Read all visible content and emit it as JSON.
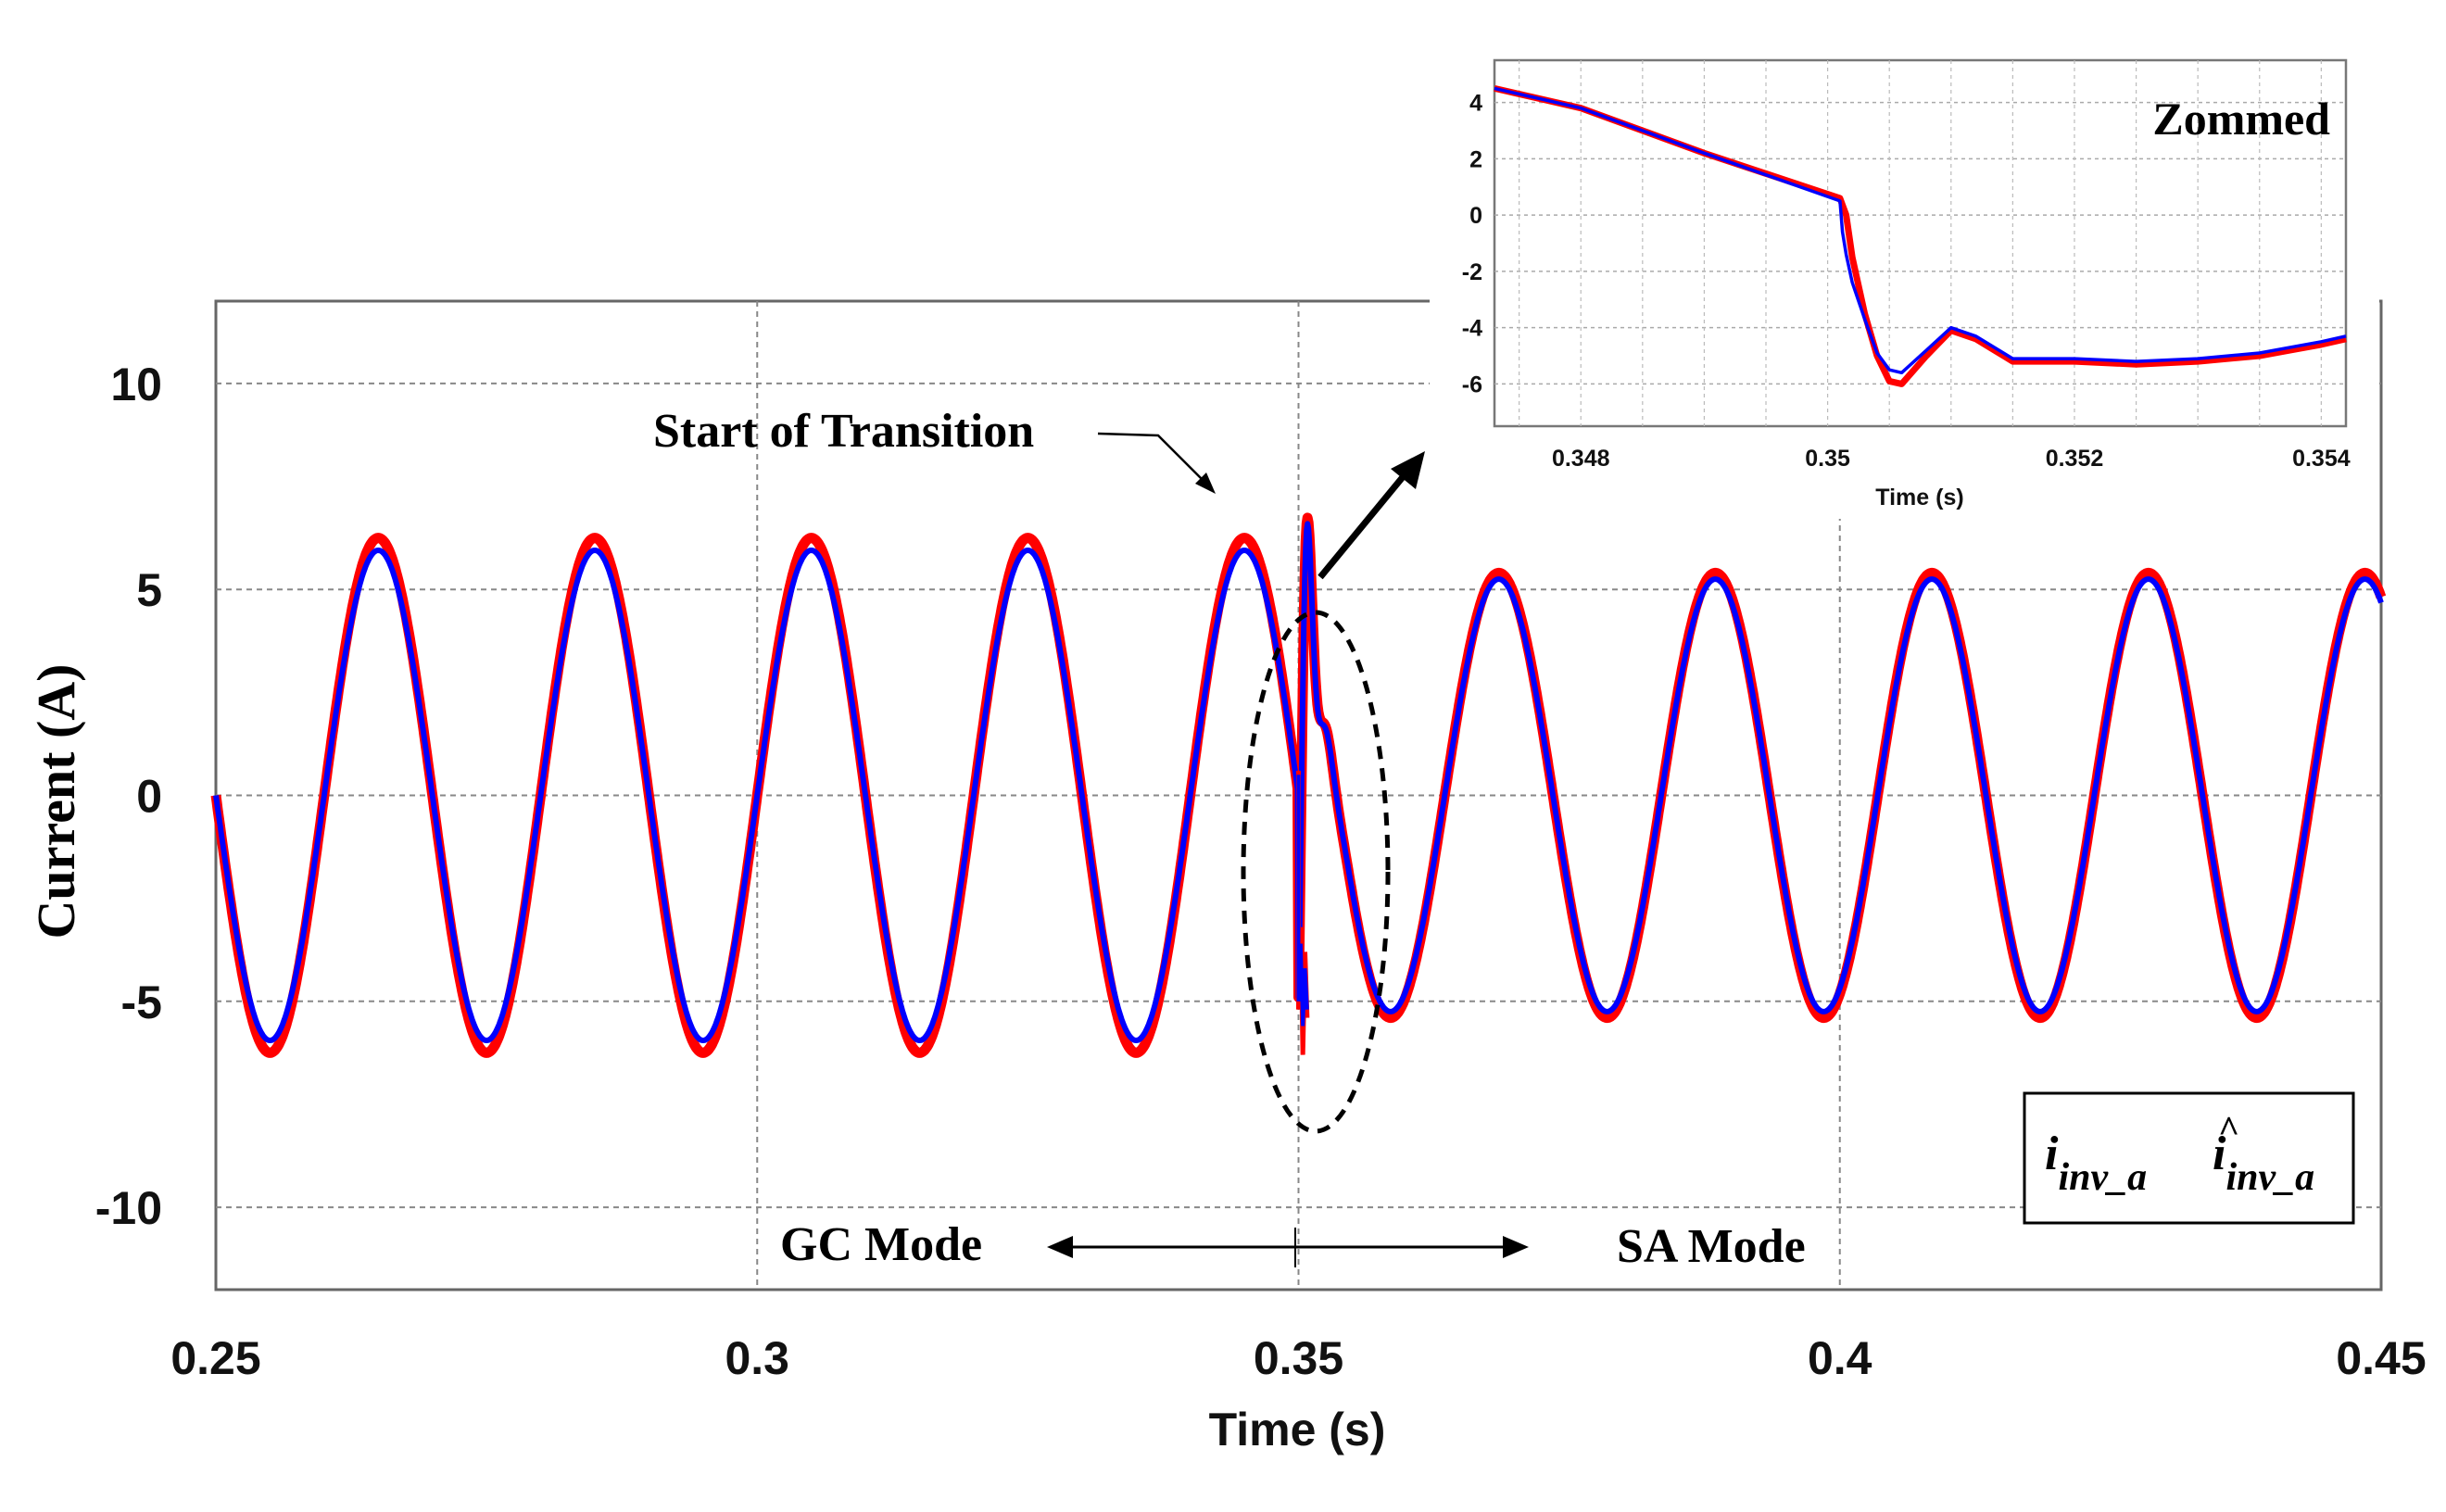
{
  "chart_data": [
    {
      "id": "main",
      "type": "line",
      "xlabel": "Time (s)",
      "ylabel": "Current (A)",
      "xlim": [
        0.25,
        0.45
      ],
      "ylim": [
        -12,
        12
      ],
      "xticks": [
        0.25,
        0.3,
        0.35,
        0.4,
        0.45
      ],
      "xtick_labels": [
        "0.25",
        "0.3",
        "0.35",
        "0.4",
        "0.45"
      ],
      "yticks": [
        10,
        5,
        0,
        -5,
        -10
      ],
      "ytick_labels": [
        "10",
        "5",
        "0",
        "-5",
        "-10"
      ],
      "grid": true,
      "frequency_hz": 50,
      "transition_time": 0.35,
      "gc_mode_amplitude": 6.0,
      "sa_mode_amplitude": 5.3,
      "sa_mode_phase_shift_rad": -1.1,
      "series": [
        {
          "name": "i_inv_a",
          "color": "#ff0000",
          "amplitude_gc": 6.25,
          "amplitude_sa": 5.4
        },
        {
          "name": "i^_inv_a",
          "color": "#0000ff",
          "amplitude_gc": 5.95,
          "amplitude_sa": 5.25
        }
      ],
      "annotations": {
        "transition": "Start of Transition",
        "gc_mode": "GC Mode",
        "sa_mode": "SA Mode"
      },
      "legend": {
        "position": "bottom-right",
        "entries": [
          {
            "base": "i",
            "subscript": "inv_a",
            "hat": "",
            "color": "#ff0000"
          },
          {
            "base": "i",
            "subscript": "inv_a",
            "hat": "^",
            "color": "#0000ff"
          }
        ]
      }
    },
    {
      "id": "zoom",
      "type": "line",
      "title": "Zommed",
      "xlabel": "Time (s)",
      "xlim": [
        0.3473,
        0.3542
      ],
      "ylim": [
        -7.5,
        5.5
      ],
      "xticks": [
        0.348,
        0.35,
        0.352,
        0.354
      ],
      "xtick_labels": [
        "0.348",
        "0.35",
        "0.352",
        "0.354"
      ],
      "yticks": [
        4,
        2,
        0,
        -2,
        -4,
        -6
      ],
      "ytick_labels": [
        "4",
        "2",
        "0",
        "-2",
        "-4",
        "-6"
      ],
      "grid": true,
      "series": [
        {
          "name": "i_inv_a",
          "color": "#ff0000",
          "x": [
            0.3473,
            0.348,
            0.349,
            0.3501,
            0.35015,
            0.3502,
            0.3503,
            0.3504,
            0.3505,
            0.3506,
            0.3508,
            0.351,
            0.3512,
            0.3515,
            0.352,
            0.3525,
            0.353,
            0.3535,
            0.354,
            0.3542
          ],
          "y": [
            4.5,
            3.8,
            2.2,
            0.6,
            0.0,
            -1.5,
            -3.5,
            -5.0,
            -5.9,
            -6.0,
            -5.0,
            -4.1,
            -4.4,
            -5.2,
            -5.2,
            -5.3,
            -5.2,
            -5.0,
            -4.6,
            -4.4
          ]
        },
        {
          "name": "i^_inv_a",
          "color": "#0000ff",
          "x": [
            0.3473,
            0.348,
            0.349,
            0.3501,
            0.35012,
            0.35015,
            0.3502,
            0.3503,
            0.3504,
            0.3505,
            0.3506,
            0.3508,
            0.351,
            0.3512,
            0.3515,
            0.352,
            0.3525,
            0.353,
            0.3535,
            0.354,
            0.3542
          ],
          "y": [
            4.5,
            3.8,
            2.2,
            0.5,
            -0.6,
            -1.4,
            -2.4,
            -3.7,
            -4.9,
            -5.5,
            -5.6,
            -4.8,
            -4.0,
            -4.3,
            -5.1,
            -5.1,
            -5.2,
            -5.1,
            -4.9,
            -4.5,
            -4.3
          ]
        }
      ]
    }
  ]
}
